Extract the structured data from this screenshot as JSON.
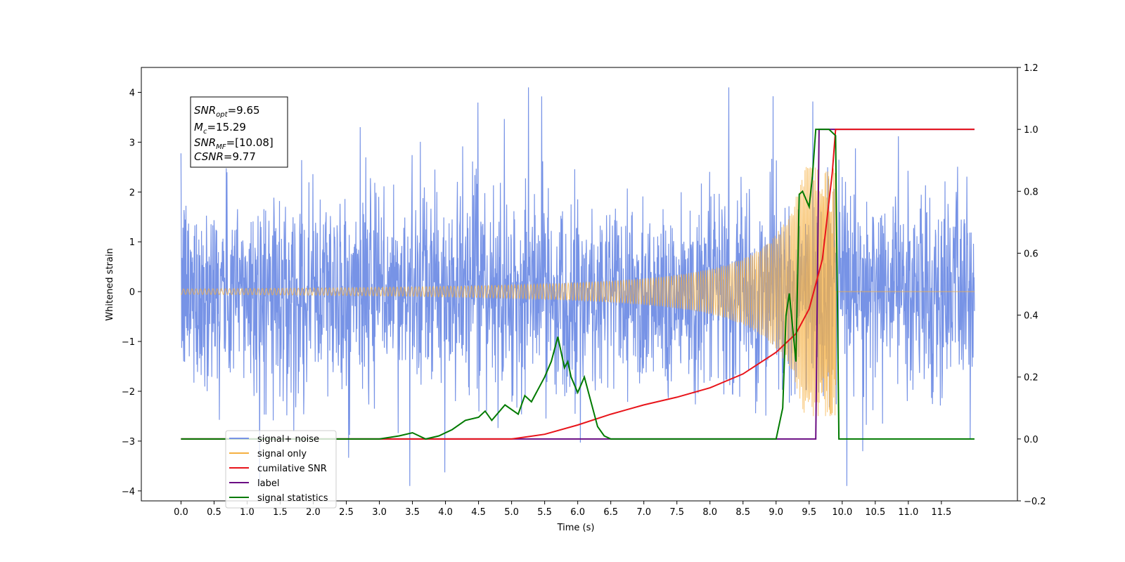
{
  "chart_data": {
    "type": "line",
    "xlabel": "Time (s)",
    "ylabel": "Whitened strain",
    "xlim": [
      -0.6,
      12.65
    ],
    "ylim": [
      -4.2,
      4.5
    ],
    "y2lim": [
      -0.2,
      1.2
    ],
    "x_ticks": [
      "0.0",
      "0.5",
      "1.0",
      "1.5",
      "2.0",
      "2.5",
      "3.0",
      "3.5",
      "4.0",
      "4.5",
      "5.0",
      "5.5",
      "6.0",
      "6.5",
      "7.0",
      "7.5",
      "8.0",
      "8.5",
      "9.0",
      "9.5",
      "10.0",
      "10.5",
      "11.0",
      "11.5"
    ],
    "y_ticks": [
      "−4",
      "−3",
      "−2",
      "−1",
      "0",
      "1",
      "2",
      "3",
      "4"
    ],
    "y2_ticks": [
      "−0.2",
      "0.0",
      "0.2",
      "0.4",
      "0.6",
      "0.8",
      "1.0",
      "1.2"
    ],
    "grid": false,
    "legend_position": "lower-left",
    "annotation": {
      "snr_opt": {
        "main": "SNR",
        "sub": "opt",
        "rest": "=9.65"
      },
      "mc": {
        "main": "M",
        "sub": "c",
        "rest": "=15.29"
      },
      "snr_mf": {
        "main": "SNR",
        "sub": "MF",
        "rest": "=[10.08]"
      },
      "csnr": {
        "main": "CSNR",
        "rest": "=9.77"
      }
    },
    "series": [
      {
        "name": "signal+ noise",
        "color": "#7793e6",
        "axis": "left",
        "note": "noise about 0, amplitude ~ ±2.5, extremes ~ −3.9 to 4.1, t = 0 to 12"
      },
      {
        "name": "signal only",
        "color": "#f5b041",
        "axis": "left",
        "note": "chirp, amplitude grows toward merger at t ≈ 9.9 (peak ~ ±2.5), flat after"
      },
      {
        "name": "cumilative SNR",
        "color": "#e8141a",
        "axis": "right",
        "x": [
          0.0,
          5.0,
          5.5,
          6.0,
          6.5,
          7.0,
          7.5,
          8.0,
          8.5,
          9.0,
          9.3,
          9.5,
          9.7,
          9.85,
          9.9,
          12.0
        ],
        "y": [
          0.0,
          0.0,
          0.015,
          0.045,
          0.08,
          0.11,
          0.135,
          0.165,
          0.21,
          0.28,
          0.34,
          0.42,
          0.58,
          0.86,
          1.0,
          1.0
        ]
      },
      {
        "name": "label",
        "color": "#6a0d83",
        "axis": "right",
        "x": [
          0.0,
          9.6,
          9.65,
          12.0
        ],
        "y": [
          0.0,
          0.0,
          1.0,
          1.0
        ]
      },
      {
        "name": "signal statistics",
        "color": "#007a00",
        "axis": "right",
        "x": [
          0.0,
          2.5,
          3.0,
          3.3,
          3.5,
          3.7,
          3.9,
          4.1,
          4.3,
          4.5,
          4.6,
          4.7,
          4.9,
          5.1,
          5.2,
          5.3,
          5.4,
          5.5,
          5.6,
          5.7,
          5.75,
          5.8,
          5.85,
          5.9,
          6.0,
          6.1,
          6.2,
          6.3,
          6.4,
          6.5,
          6.7,
          9.0,
          9.1,
          9.15,
          9.2,
          9.3,
          9.35,
          9.4,
          9.5,
          9.55,
          9.6,
          9.7,
          9.8,
          9.9,
          9.95,
          12.0
        ],
        "y": [
          0.0,
          0.0,
          0.0,
          0.01,
          0.02,
          0.0,
          0.01,
          0.03,
          0.06,
          0.07,
          0.09,
          0.06,
          0.11,
          0.08,
          0.14,
          0.12,
          0.16,
          0.2,
          0.25,
          0.33,
          0.28,
          0.23,
          0.25,
          0.2,
          0.15,
          0.2,
          0.12,
          0.04,
          0.01,
          0.0,
          0.0,
          0.0,
          0.1,
          0.4,
          0.47,
          0.25,
          0.79,
          0.8,
          0.75,
          0.85,
          1.0,
          1.0,
          1.0,
          0.98,
          0.0,
          0.0
        ]
      }
    ]
  }
}
